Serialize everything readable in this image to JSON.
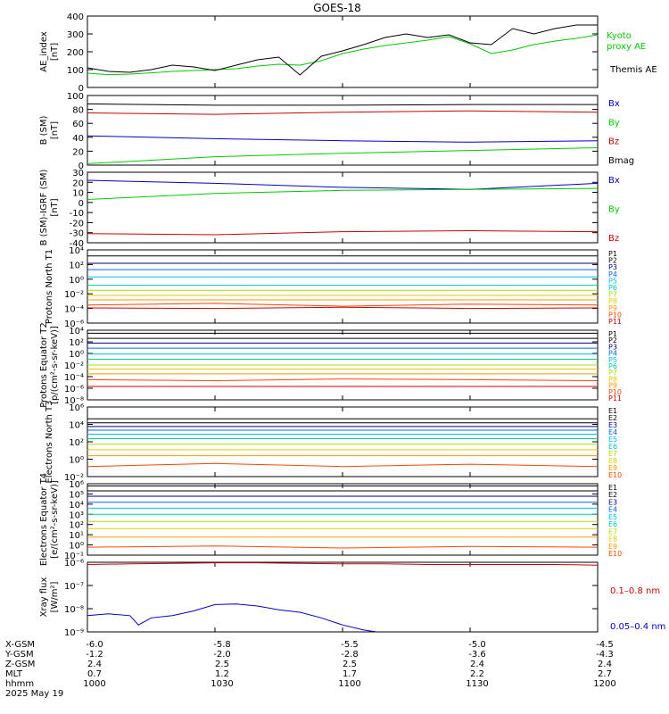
{
  "title": "GOES-18",
  "colors": {
    "black": "#000000",
    "blue": "#0000cc",
    "green": "#00cc00",
    "red": "#cc0000",
    "P": [
      "#000000",
      "#000000",
      "#000080",
      "#0066ff",
      "#00bbee",
      "#00ccaa",
      "#aadd00",
      "#ddcc00",
      "#ff9900",
      "#ff4400",
      "#cc0000",
      "#990000"
    ],
    "E": [
      "#000000",
      "#000000",
      "#000080",
      "#0066ff",
      "#00bbee",
      "#00ccaa",
      "#aadd00",
      "#ddcc00",
      "#ff9900",
      "#ff4400",
      "#cc0000"
    ]
  },
  "chart_data": [
    {
      "type": "line",
      "ylabel": "AE_index [nT]",
      "ylim": [
        0,
        400
      ],
      "yticks": [
        "0",
        "100",
        "200",
        "300",
        "400"
      ],
      "series": [
        {
          "name": "Kyoto proxy AE",
          "color": "green",
          "x": [
            1000,
            1005,
            1010,
            1015,
            1020,
            1025,
            1030,
            1035,
            1040,
            1045,
            1050,
            1055,
            1100,
            1105,
            1110,
            1115,
            1120,
            1125,
            1130,
            1135,
            1140,
            1145,
            1150,
            1155,
            1200
          ],
          "values": [
            80,
            72,
            75,
            82,
            90,
            95,
            100,
            105,
            120,
            130,
            125,
            150,
            190,
            215,
            235,
            250,
            265,
            285,
            245,
            190,
            210,
            240,
            260,
            275,
            295
          ]
        },
        {
          "name": "Themis AE",
          "color": "black",
          "x": [
            1000,
            1005,
            1010,
            1015,
            1020,
            1025,
            1030,
            1035,
            1040,
            1045,
            1050,
            1055,
            1100,
            1105,
            1110,
            1115,
            1120,
            1125,
            1130,
            1135,
            1140,
            1145,
            1150,
            1155,
            1200
          ],
          "values": [
            110,
            90,
            85,
            100,
            125,
            115,
            95,
            125,
            155,
            170,
            70,
            175,
            205,
            240,
            280,
            300,
            280,
            295,
            250,
            240,
            330,
            300,
            330,
            350,
            350
          ]
        }
      ]
    },
    {
      "type": "line",
      "ylabel": "B (SM) [nT]",
      "ylim": [
        0,
        100
      ],
      "yticks": [
        "0",
        "20",
        "40",
        "60",
        "80",
        "100"
      ],
      "series": [
        {
          "name": "Bx",
          "color": "blue",
          "x": [
            1000,
            1030,
            1100,
            1130,
            1200
          ],
          "values": [
            42,
            38,
            35,
            33,
            35
          ]
        },
        {
          "name": "By",
          "color": "green",
          "x": [
            1000,
            1030,
            1100,
            1130,
            1200
          ],
          "values": [
            2,
            12,
            17,
            21,
            25
          ]
        },
        {
          "name": "Bz",
          "color": "red",
          "x": [
            1000,
            1030,
            1100,
            1130,
            1200
          ],
          "values": [
            75,
            73,
            76,
            78,
            76
          ]
        },
        {
          "name": "Bmag",
          "color": "black",
          "x": [
            1000,
            1030,
            1100,
            1130,
            1200
          ],
          "values": [
            88,
            86,
            86,
            87,
            87
          ]
        }
      ]
    },
    {
      "type": "line",
      "ylabel": "B (SM)-IGRF (SM) [nT]",
      "ylim": [
        -40,
        30
      ],
      "yticks": [
        "-40",
        "-30",
        "-20",
        "-10",
        "0",
        "10",
        "20",
        "30"
      ],
      "series": [
        {
          "name": "Bx",
          "color": "blue",
          "x": [
            1000,
            1030,
            1100,
            1130,
            1200
          ],
          "values": [
            22,
            19,
            15,
            13,
            19
          ]
        },
        {
          "name": "By",
          "color": "green",
          "x": [
            1000,
            1030,
            1100,
            1130,
            1200
          ],
          "values": [
            3,
            9,
            12,
            13,
            14
          ]
        },
        {
          "name": "Bz",
          "color": "red",
          "x": [
            1000,
            1030,
            1100,
            1130,
            1200
          ],
          "values": [
            -31,
            -32,
            -29,
            -28,
            -29
          ]
        }
      ]
    },
    {
      "type": "line",
      "ylabel": "Protons North T1",
      "scale": "log",
      "ylim": [
        1e-06,
        10000.0
      ],
      "yticks": [
        "10⁻⁶",
        "10⁻⁴",
        "10⁻²",
        "10⁰",
        "10²",
        "10⁴"
      ],
      "series": [
        {
          "name": "P1",
          "x": [
            1000,
            1200
          ],
          "values": [
            10000,
            10000
          ]
        },
        {
          "name": "P2",
          "x": [
            1000,
            1200
          ],
          "values": [
            1500,
            1500
          ]
        },
        {
          "name": "P3",
          "x": [
            1000,
            1200
          ],
          "values": [
            150,
            150
          ]
        },
        {
          "name": "P4",
          "x": [
            1000,
            1200
          ],
          "values": [
            20,
            20
          ]
        },
        {
          "name": "P5",
          "x": [
            1000,
            1200
          ],
          "values": [
            2,
            2
          ]
        },
        {
          "name": "P6",
          "x": [
            1000,
            1200
          ],
          "values": [
            0.15,
            0.15
          ]
        },
        {
          "name": "P7",
          "x": [
            1000,
            1200
          ],
          "values": [
            0.03,
            0.03
          ]
        },
        {
          "name": "P8",
          "x": [
            1000,
            1200
          ],
          "values": [
            0.006,
            0.006
          ]
        },
        {
          "name": "P9",
          "x": [
            1000,
            1200
          ],
          "values": [
            0.0015,
            0.0015
          ]
        },
        {
          "name": "P10",
          "x": [
            1000,
            1030,
            1100,
            1130,
            1200
          ],
          "values": [
            0.0003,
            0.0005,
            0.0002,
            0.0004,
            0.0003
          ]
        },
        {
          "name": "P11",
          "x": [
            1000,
            1030,
            1100,
            1130,
            1200
          ],
          "values": [
            0.00012,
            0.0001,
            0.00015,
            0.0001,
            0.00012
          ]
        }
      ]
    },
    {
      "type": "line",
      "ylabel": "Protons Equator T2 [p/(cm²-s-sr-keV)]",
      "scale": "log",
      "ylim": [
        1e-08,
        10000.0
      ],
      "yticks": [
        "10⁻⁸",
        "10⁻⁶",
        "10⁻⁴",
        "10⁻²",
        "10⁰",
        "10²",
        "10⁴"
      ],
      "series": [
        {
          "name": "P1",
          "x": [
            1000,
            1200
          ],
          "values": [
            3000,
            3000
          ]
        },
        {
          "name": "P2",
          "x": [
            1000,
            1200
          ],
          "values": [
            400,
            400
          ]
        },
        {
          "name": "P3",
          "x": [
            1000,
            1200
          ],
          "values": [
            60,
            60
          ]
        },
        {
          "name": "P4",
          "x": [
            1000,
            1200
          ],
          "values": [
            8,
            8
          ]
        },
        {
          "name": "P5",
          "x": [
            1000,
            1200
          ],
          "values": [
            0.8,
            0.8
          ]
        },
        {
          "name": "P6",
          "x": [
            1000,
            1200
          ],
          "values": [
            0.1,
            0.1
          ]
        },
        {
          "name": "P7",
          "x": [
            1000,
            1200
          ],
          "values": [
            0.01,
            0.01
          ]
        },
        {
          "name": "P8",
          "x": [
            1000,
            1200
          ],
          "values": [
            0.002,
            0.002
          ]
        },
        {
          "name": "P9",
          "x": [
            1000,
            1200
          ],
          "values": [
            0.0003,
            0.0003
          ]
        },
        {
          "name": "P10",
          "x": [
            1000,
            1030,
            1100,
            1130,
            1200
          ],
          "values": [
            3e-05,
            2e-05,
            4e-05,
            3e-05,
            2e-05
          ]
        },
        {
          "name": "P11",
          "x": [
            1000,
            1200
          ],
          "values": [
            2e-06,
            2e-06
          ]
        }
      ]
    },
    {
      "type": "line",
      "ylabel": "Electrons North T3",
      "scale": "log",
      "ylim": [
        0.001,
        1000000.0
      ],
      "yticks": [
        "10⁻²",
        "10⁰",
        "10²",
        "10⁴",
        "10⁶"
      ],
      "series": [
        {
          "name": "E1",
          "x": [
            1000,
            1200
          ],
          "values": [
            30000,
            30000
          ]
        },
        {
          "name": "E2",
          "x": [
            1000,
            1200
          ],
          "values": [
            9000,
            9000
          ]
        },
        {
          "name": "E3",
          "x": [
            1000,
            1200
          ],
          "values": [
            3000,
            3000
          ]
        },
        {
          "name": "E4",
          "x": [
            1000,
            1200
          ],
          "values": [
            1000,
            1000
          ]
        },
        {
          "name": "E5",
          "x": [
            1000,
            1200
          ],
          "values": [
            300,
            300
          ]
        },
        {
          "name": "E6",
          "x": [
            1000,
            1200
          ],
          "values": [
            80,
            80
          ]
        },
        {
          "name": "E7",
          "x": [
            1000,
            1200
          ],
          "values": [
            15,
            15
          ]
        },
        {
          "name": "E8",
          "x": [
            1000,
            1200
          ],
          "values": [
            3,
            3
          ]
        },
        {
          "name": "E9",
          "x": [
            1000,
            1200
          ],
          "values": [
            0.5,
            0.5
          ]
        },
        {
          "name": "E10",
          "x": [
            1000,
            1030,
            1100,
            1130,
            1200
          ],
          "values": [
            0.02,
            0.05,
            0.02,
            0.04,
            0.02
          ]
        }
      ]
    },
    {
      "type": "line",
      "ylabel": "Electrons Equator T4 [e/(cm²-s-sr-keV)]",
      "scale": "log",
      "ylim": [
        0.1,
        1000000.0
      ],
      "yticks": [
        "10⁻¹",
        "10⁰",
        "10¹",
        "10²",
        "10³",
        "10⁴",
        "10⁵",
        "10⁶"
      ],
      "series": [
        {
          "name": "E1",
          "x": [
            1000,
            1200
          ],
          "values": [
            600000,
            600000
          ]
        },
        {
          "name": "E2",
          "x": [
            1000,
            1200
          ],
          "values": [
            200000,
            200000
          ]
        },
        {
          "name": "E3",
          "x": [
            1000,
            1200
          ],
          "values": [
            60000,
            60000
          ]
        },
        {
          "name": "E4",
          "x": [
            1000,
            1200
          ],
          "values": [
            15000,
            15000
          ]
        },
        {
          "name": "E5",
          "x": [
            1000,
            1200
          ],
          "values": [
            4000,
            4000
          ]
        },
        {
          "name": "E6",
          "x": [
            1000,
            1200
          ],
          "values": [
            1000,
            1000
          ]
        },
        {
          "name": "E7",
          "x": [
            1000,
            1200
          ],
          "values": [
            200,
            200
          ]
        },
        {
          "name": "E8",
          "x": [
            1000,
            1200
          ],
          "values": [
            40,
            40
          ]
        },
        {
          "name": "E9",
          "x": [
            1000,
            1200
          ],
          "values": [
            6,
            6
          ]
        },
        {
          "name": "E10",
          "x": [
            1000,
            1030,
            1100,
            1130,
            1200
          ],
          "values": [
            0.6,
            0.8,
            0.5,
            0.7,
            0.6
          ]
        }
      ]
    },
    {
      "type": "line",
      "ylabel": "Xray flux [W/m²]",
      "scale": "log",
      "ylim": [
        1e-09,
        1e-06
      ],
      "yticks": [
        "10⁻⁹",
        "10⁻⁸",
        "10⁻⁷",
        "10⁻⁶"
      ],
      "series": [
        {
          "name": "0.1-0.8 nm",
          "color": "red",
          "x": [
            1000,
            1010,
            1020,
            1030,
            1040,
            1050,
            1100,
            1110,
            1120,
            1130,
            1140,
            1150,
            1200
          ],
          "values": [
            8e-07,
            8.5e-07,
            9e-07,
            9.5e-07,
            9.5e-07,
            9e-07,
            8.5e-07,
            8.5e-07,
            8e-07,
            8e-07,
            8e-07,
            8e-07,
            7.5e-07
          ]
        },
        {
          "name": "0.05-0.4 nm",
          "color": "blue",
          "x": [
            1000,
            1005,
            1010,
            1012,
            1015,
            1020,
            1025,
            1030,
            1035,
            1040,
            1045,
            1050,
            1055,
            1100,
            1105,
            1108
          ],
          "values": [
            5e-09,
            6e-09,
            5e-09,
            2e-09,
            4e-09,
            5e-09,
            8e-09,
            1.5e-08,
            1.6e-08,
            1.3e-08,
            9e-09,
            7e-09,
            4e-09,
            2e-09,
            1.2e-09,
            1e-09
          ]
        }
      ]
    }
  ],
  "xaxis": {
    "rows": [
      {
        "label": "X-GSM",
        "values": [
          "-6.0",
          "-5.8",
          "-5.5",
          "-5.0",
          "-4.5"
        ]
      },
      {
        "label": "Y-GSM",
        "values": [
          "-1.2",
          "-2.0",
          "-2.8",
          "-3.6",
          "-4.3"
        ]
      },
      {
        "label": "Z-GSM",
        "values": [
          "2.4",
          "2.5",
          "2.5",
          "2.4",
          "2.4"
        ]
      },
      {
        "label": "MLT",
        "values": [
          "0.7",
          "1.2",
          "1.7",
          "2.2",
          "2.7"
        ]
      },
      {
        "label": "hhmm",
        "values": [
          "1000",
          "1030",
          "1100",
          "1130",
          "1200"
        ]
      }
    ],
    "date": "2025 May 19"
  }
}
